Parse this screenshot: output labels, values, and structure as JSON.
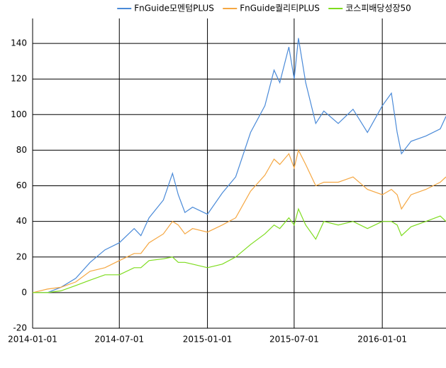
{
  "chart_data": {
    "type": "line",
    "x": [
      "2014-01-01",
      "2014-02-01",
      "2014-03-01",
      "2014-04-01",
      "2014-05-01",
      "2014-06-01",
      "2014-07-01",
      "2014-08-01",
      "2014-08-15",
      "2014-09-01",
      "2014-10-01",
      "2014-10-20",
      "2014-11-01",
      "2014-11-15",
      "2014-12-01",
      "2015-01-01",
      "2015-02-01",
      "2015-03-01",
      "2015-04-01",
      "2015-05-01",
      "2015-05-20",
      "2015-06-01",
      "2015-06-20",
      "2015-07-01",
      "2015-07-10",
      "2015-07-25",
      "2015-08-15",
      "2015-09-01",
      "2015-10-01",
      "2015-11-01",
      "2015-12-01",
      "2016-01-01",
      "2016-01-20",
      "2016-02-01",
      "2016-02-10",
      "2016-03-01",
      "2016-04-01",
      "2016-05-01",
      "2016-05-13"
    ],
    "series": [
      {
        "name": "FnGuide모멘텀PLUS",
        "color": "#4a8ad8",
        "values": [
          0,
          0,
          3,
          8,
          17,
          24,
          28,
          36,
          32,
          42,
          52,
          67,
          55,
          45,
          48,
          44,
          56,
          65,
          90,
          105,
          125,
          118,
          138,
          120,
          143,
          118,
          95,
          102,
          95,
          103,
          90,
          105,
          112,
          90,
          78,
          85,
          88,
          92,
          99
        ]
      },
      {
        "name": "FnGuide퀄리티PLUS",
        "color": "#f5a742",
        "values": [
          0,
          2,
          3,
          6,
          12,
          14,
          18,
          22,
          22,
          28,
          33,
          40,
          38,
          33,
          36,
          34,
          38,
          42,
          57,
          66,
          75,
          72,
          78,
          70,
          80,
          72,
          60,
          62,
          62,
          65,
          58,
          55,
          58,
          55,
          47,
          55,
          58,
          62,
          65
        ]
      },
      {
        "name": "코스피배당성장50",
        "color": "#7edc1e",
        "values": [
          0,
          0,
          1,
          4,
          7,
          10,
          10,
          14,
          14,
          18,
          19,
          20,
          17,
          17,
          16,
          14,
          16,
          20,
          27,
          33,
          38,
          36,
          42,
          38,
          47,
          38,
          30,
          40,
          38,
          40,
          36,
          40,
          40,
          38,
          32,
          37,
          40,
          43,
          40
        ]
      }
    ],
    "xlim": [
      "2014-01-01",
      "2016-05-13"
    ],
    "xticks": [
      "2014-01-01",
      "2014-07-01",
      "2015-01-01",
      "2015-07-01",
      "2016-01-01"
    ],
    "ylim": [
      -20,
      154
    ],
    "yticks": [
      -20,
      0,
      20,
      40,
      60,
      80,
      100,
      120,
      140
    ],
    "grid": true,
    "legend": "top"
  }
}
